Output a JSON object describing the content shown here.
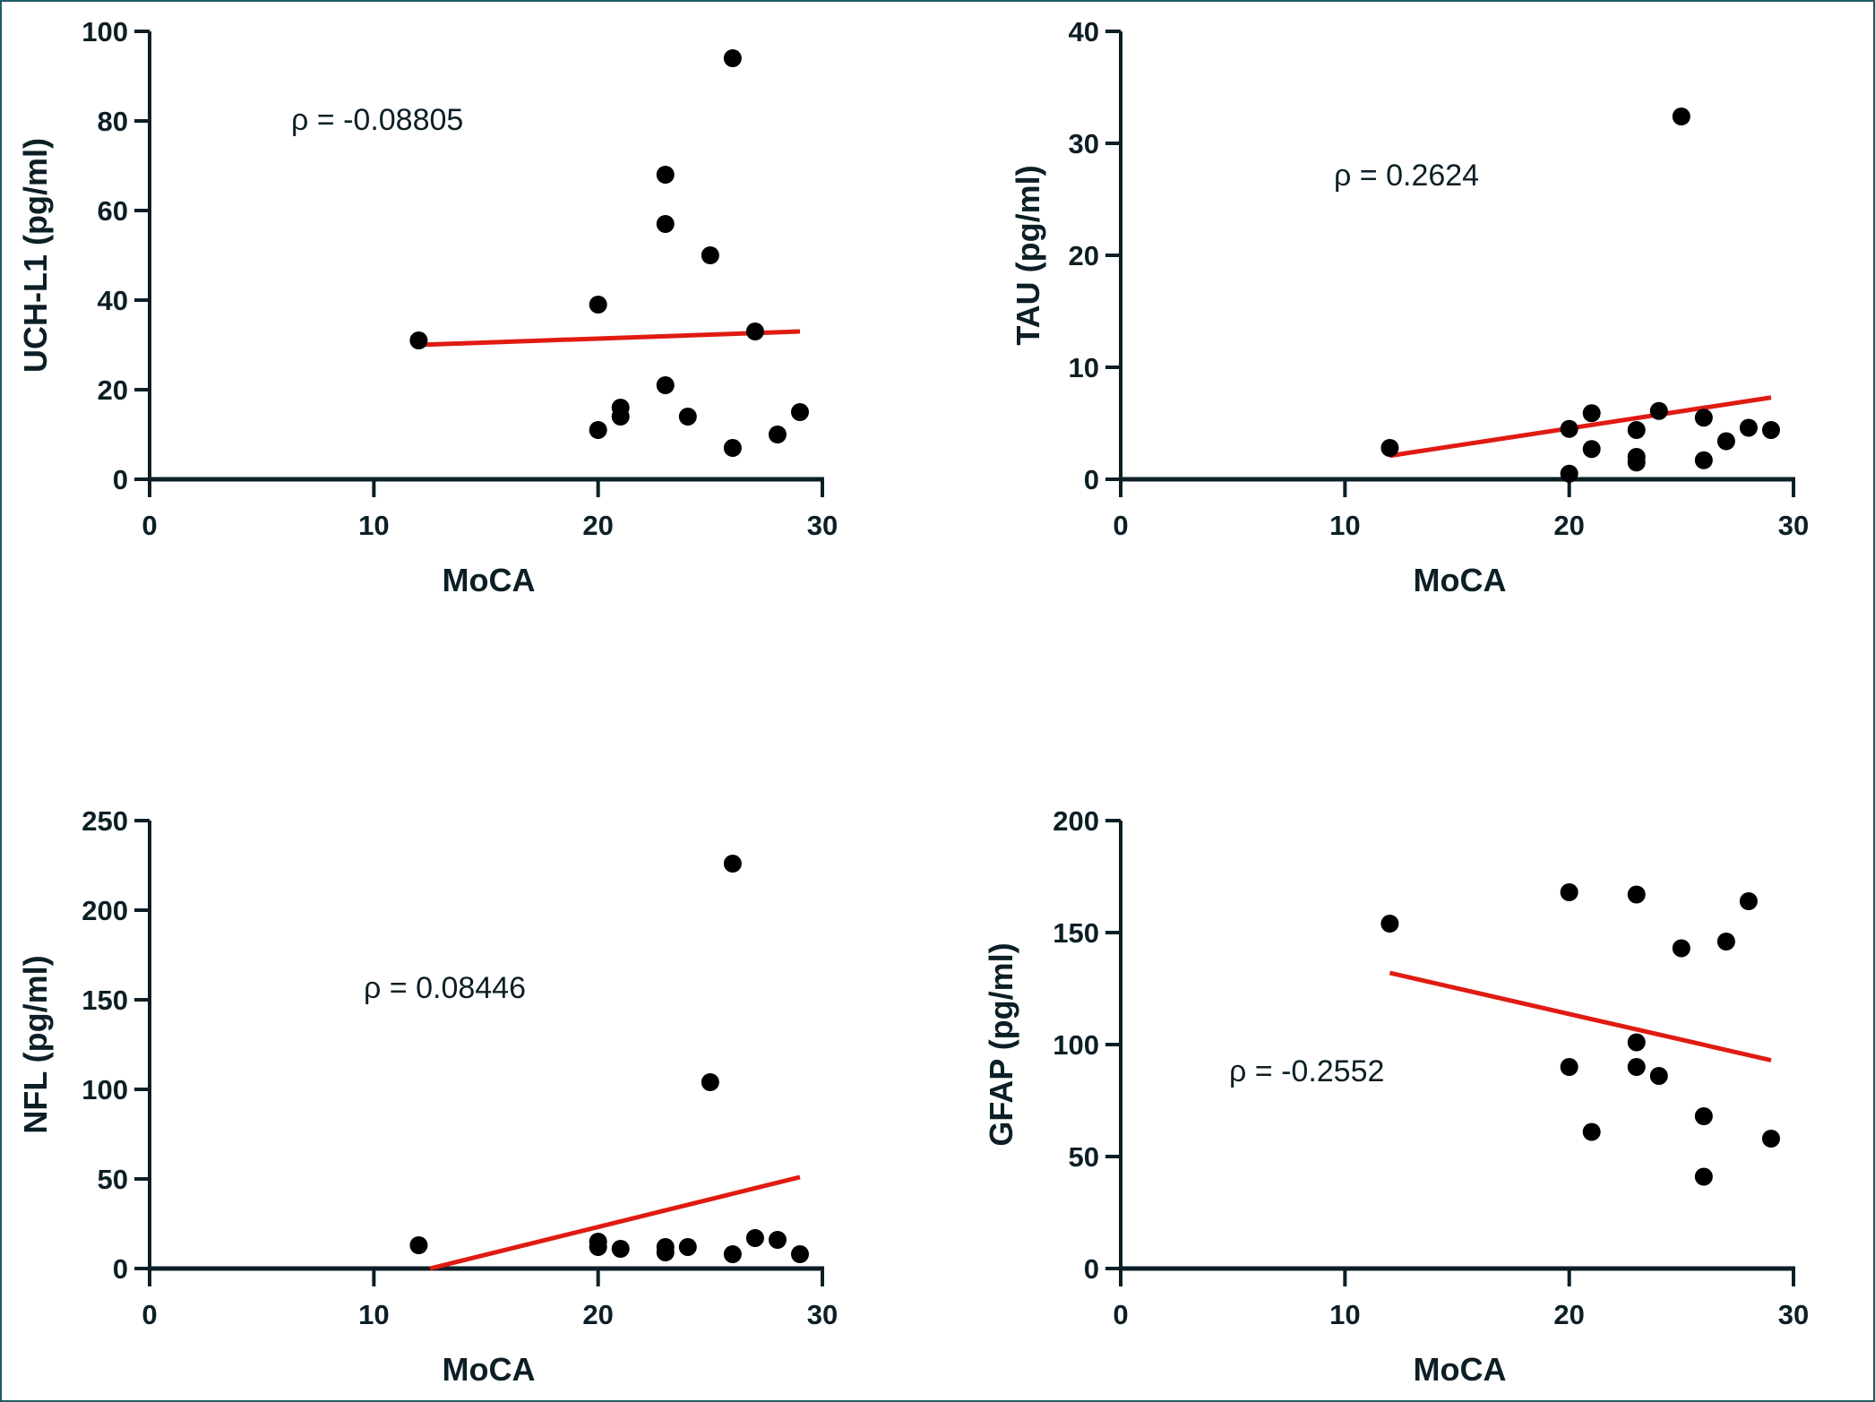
{
  "colors": {
    "axis": "#0d1f26",
    "point": "#000000",
    "regression": "#e01b12",
    "border": "#1f5d66"
  },
  "chart_data": [
    {
      "type": "scatter",
      "id": "uchl1",
      "xlabel": "MoCA",
      "ylabel": "UCH-L1 (pg/ml)",
      "annotation": "ρ = -0.08805",
      "xlim": [
        0,
        30
      ],
      "ylim": [
        0,
        100
      ],
      "xticks": [
        0,
        10,
        20,
        30
      ],
      "yticks": [
        0,
        20,
        40,
        60,
        80,
        100
      ],
      "xtick_labels": [
        "0",
        "10",
        "20",
        "30"
      ],
      "ytick_labels": [
        "0",
        "20",
        "40",
        "60",
        "80",
        "100"
      ],
      "grid": false,
      "points": [
        {
          "x": 12,
          "y": 31
        },
        {
          "x": 20,
          "y": 39
        },
        {
          "x": 20,
          "y": 11
        },
        {
          "x": 21,
          "y": 16
        },
        {
          "x": 21,
          "y": 14
        },
        {
          "x": 23,
          "y": 68
        },
        {
          "x": 23,
          "y": 57
        },
        {
          "x": 23,
          "y": 21
        },
        {
          "x": 24,
          "y": 14
        },
        {
          "x": 25,
          "y": 50
        },
        {
          "x": 26,
          "y": 94
        },
        {
          "x": 26,
          "y": 7
        },
        {
          "x": 27,
          "y": 33
        },
        {
          "x": 28,
          "y": 10
        },
        {
          "x": 29,
          "y": 15
        }
      ],
      "regression": {
        "x": [
          12,
          29
        ],
        "y": [
          30,
          33
        ]
      }
    },
    {
      "type": "scatter",
      "id": "tau",
      "xlabel": "MoCA",
      "ylabel": "TAU (pg/ml)",
      "annotation": "ρ = 0.2624",
      "xlim": [
        0,
        30
      ],
      "ylim": [
        0,
        40
      ],
      "xticks": [
        0,
        10,
        20,
        30
      ],
      "yticks": [
        0,
        10,
        20,
        30,
        40
      ],
      "xtick_labels": [
        "0",
        "10",
        "20",
        "30"
      ],
      "ytick_labels": [
        "0",
        "10",
        "20",
        "30",
        "40"
      ],
      "grid": false,
      "points": [
        {
          "x": 12,
          "y": 2.8
        },
        {
          "x": 20,
          "y": 4.5
        },
        {
          "x": 20,
          "y": 0.5
        },
        {
          "x": 21,
          "y": 5.9
        },
        {
          "x": 21,
          "y": 2.7
        },
        {
          "x": 23,
          "y": 4.4
        },
        {
          "x": 23,
          "y": 2.0
        },
        {
          "x": 23,
          "y": 1.5
        },
        {
          "x": 24,
          "y": 6.1
        },
        {
          "x": 25,
          "y": 32.4
        },
        {
          "x": 26,
          "y": 5.5
        },
        {
          "x": 26,
          "y": 1.7
        },
        {
          "x": 27,
          "y": 3.4
        },
        {
          "x": 28,
          "y": 4.6
        },
        {
          "x": 29,
          "y": 4.4
        }
      ],
      "regression": {
        "x": [
          12,
          29
        ],
        "y": [
          2.1,
          7.3
        ]
      }
    },
    {
      "type": "scatter",
      "id": "nfl",
      "xlabel": "MoCA",
      "ylabel": "NFL (pg/ml)",
      "annotation": "ρ = 0.08446",
      "xlim": [
        0,
        30
      ],
      "ylim": [
        0,
        250
      ],
      "xticks": [
        0,
        10,
        20,
        30
      ],
      "yticks": [
        0,
        50,
        100,
        150,
        200,
        250
      ],
      "xtick_labels": [
        "0",
        "10",
        "20",
        "30"
      ],
      "ytick_labels": [
        "0",
        "50",
        "100",
        "150",
        "200",
        "250"
      ],
      "grid": false,
      "points": [
        {
          "x": 12,
          "y": 13
        },
        {
          "x": 20,
          "y": 15
        },
        {
          "x": 20,
          "y": 12
        },
        {
          "x": 21,
          "y": 11
        },
        {
          "x": 23,
          "y": 12
        },
        {
          "x": 23,
          "y": 9
        },
        {
          "x": 24,
          "y": 12
        },
        {
          "x": 25,
          "y": 104
        },
        {
          "x": 26,
          "y": 226
        },
        {
          "x": 26,
          "y": 8
        },
        {
          "x": 27,
          "y": 17
        },
        {
          "x": 28,
          "y": 16
        },
        {
          "x": 29,
          "y": 8
        }
      ],
      "regression": {
        "x": [
          12.5,
          29
        ],
        "y": [
          0,
          51
        ]
      }
    },
    {
      "type": "scatter",
      "id": "gfap",
      "xlabel": "MoCA",
      "ylabel": "GFAP (pg/ml)",
      "annotation": "ρ = -0.2552",
      "xlim": [
        0,
        30
      ],
      "ylim": [
        0,
        200
      ],
      "xticks": [
        0,
        10,
        20,
        30
      ],
      "yticks": [
        0,
        50,
        100,
        150,
        200
      ],
      "xtick_labels": [
        "0",
        "10",
        "20",
        "30"
      ],
      "ytick_labels": [
        "0",
        "50",
        "100",
        "150",
        "200"
      ],
      "grid": false,
      "points": [
        {
          "x": 12,
          "y": 154
        },
        {
          "x": 20,
          "y": 168
        },
        {
          "x": 20,
          "y": 90
        },
        {
          "x": 21,
          "y": 61
        },
        {
          "x": 23,
          "y": 167
        },
        {
          "x": 23,
          "y": 101
        },
        {
          "x": 23,
          "y": 90
        },
        {
          "x": 24,
          "y": 86
        },
        {
          "x": 25,
          "y": 143
        },
        {
          "x": 26,
          "y": 68
        },
        {
          "x": 26,
          "y": 41
        },
        {
          "x": 27,
          "y": 146
        },
        {
          "x": 28,
          "y": 164
        },
        {
          "x": 29,
          "y": 58
        }
      ],
      "regression": {
        "x": [
          12,
          29
        ],
        "y": [
          132,
          93
        ]
      }
    }
  ]
}
